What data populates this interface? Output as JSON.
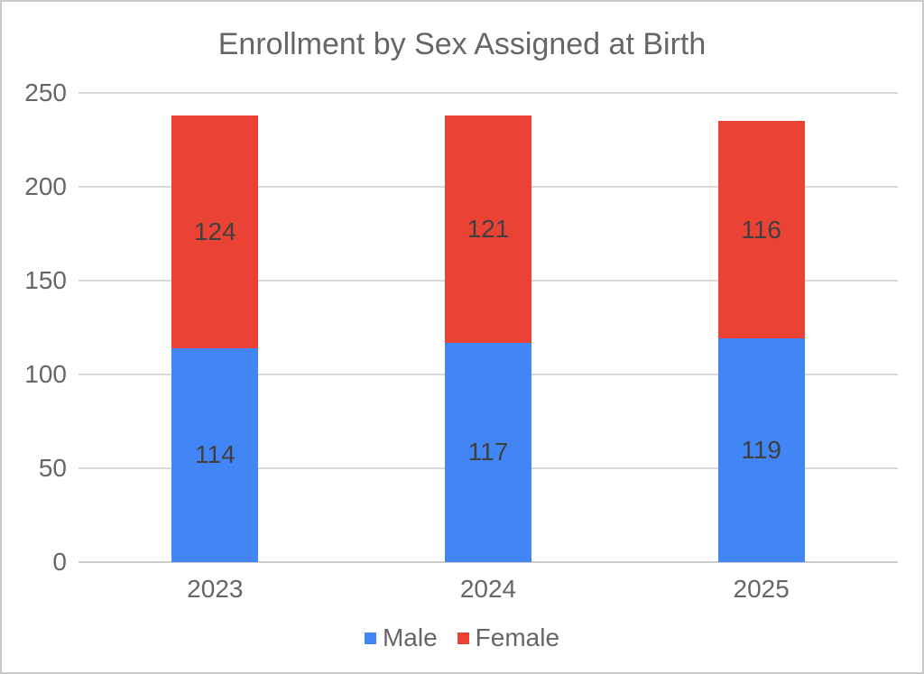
{
  "chart_data": {
    "type": "bar",
    "stacked": true,
    "title": "Enrollment by Sex Assigned at Birth",
    "categories": [
      "2023",
      "2024",
      "2025"
    ],
    "series": [
      {
        "name": "Male",
        "color": "#4285F4",
        "values": [
          114,
          117,
          119
        ]
      },
      {
        "name": "Female",
        "color": "#EA4335",
        "values": [
          124,
          121,
          116
        ]
      }
    ],
    "totals": [
      238,
      238,
      235
    ],
    "xlabel": "",
    "ylabel": "",
    "ylim": [
      0,
      250
    ],
    "yticks": [
      0,
      50,
      100,
      150,
      200,
      250
    ],
    "grid": true,
    "data_labels": true,
    "legend_position": "bottom"
  },
  "colors": {
    "grid": "#d9d9d9",
    "baseline": "#cccccc",
    "axis_text": "#666666",
    "data_label_text": "#404040",
    "title_text": "#666666",
    "page_border": "#c9c9c9",
    "background": "#ffffff"
  }
}
